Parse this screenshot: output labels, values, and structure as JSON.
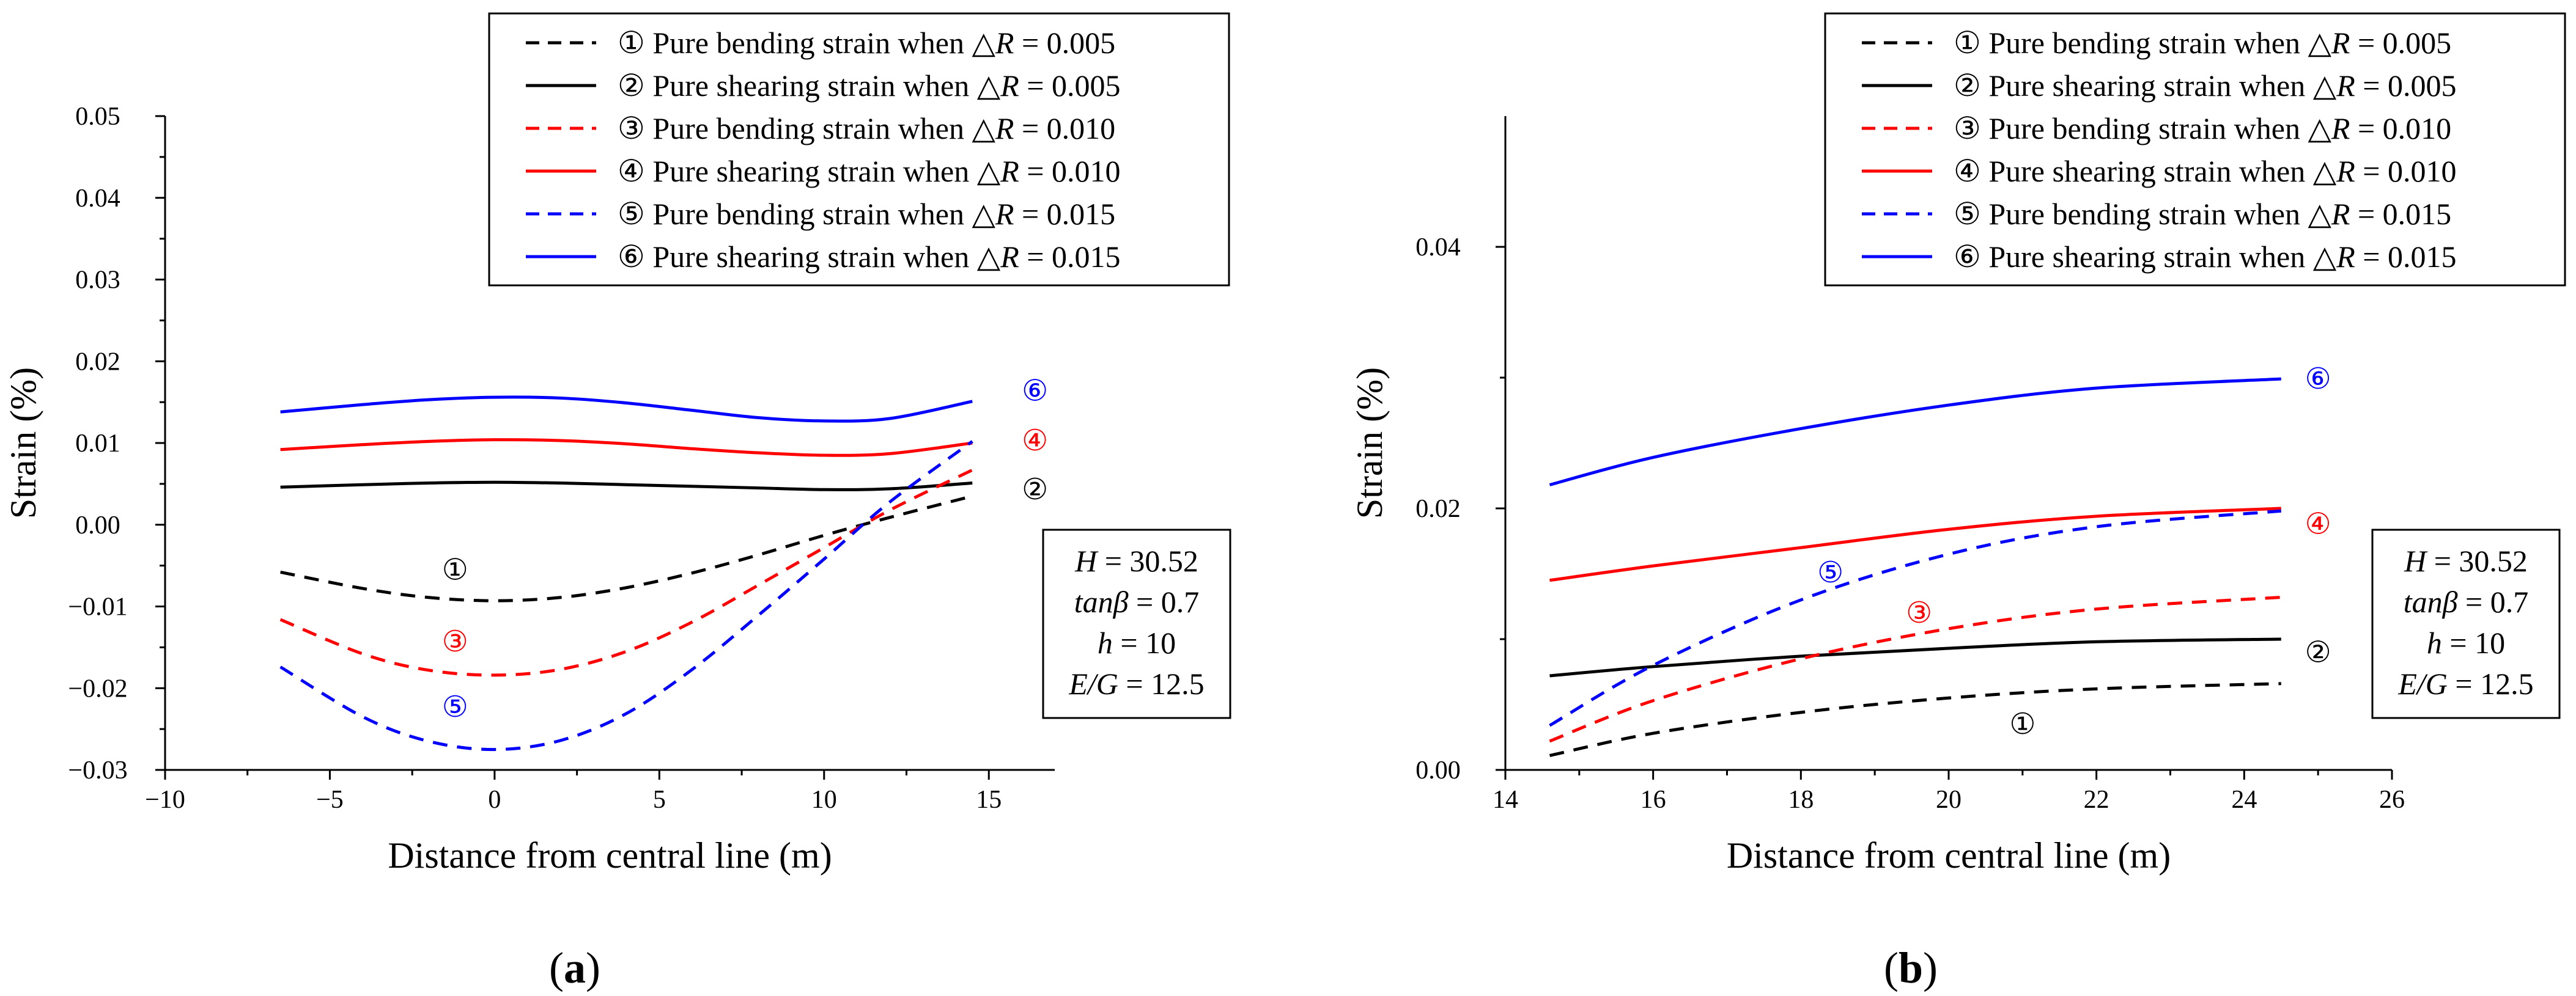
{
  "chart_data": [
    {
      "id": "a",
      "type": "line",
      "sublabel": "(a)",
      "xlabel": "Distance from central line (m)",
      "ylabel": "Strain (%)",
      "xlim": [
        -10,
        17
      ],
      "ylim": [
        -0.03,
        0.05
      ],
      "xticks": [
        -10,
        -5,
        0,
        5,
        10,
        15
      ],
      "xtick_labels": [
        "−10",
        "−5",
        "0",
        "5",
        "10",
        "15"
      ],
      "yticks": [
        -0.03,
        -0.02,
        -0.01,
        0.0,
        0.01,
        0.02,
        0.03,
        0.04,
        0.05
      ],
      "ytick_labels": [
        "−0.03",
        "−0.02",
        "−0.01",
        "0.00",
        "0.01",
        "0.02",
        "0.03",
        "0.04",
        "0.05"
      ],
      "legend_position": "top-right",
      "legend": [
        {
          "marker": "①",
          "label": "Pure bending strain when △",
          "sym": "R",
          "value": " = 0.005",
          "color": "#000000",
          "dash": true
        },
        {
          "marker": "②",
          "label": "Pure shearing strain when △",
          "sym": "R",
          "value": " = 0.005",
          "color": "#000000",
          "dash": false
        },
        {
          "marker": "③",
          "label": "Pure bending strain when △",
          "sym": "R",
          "value": " = 0.010",
          "color": "#ff0000",
          "dash": true
        },
        {
          "marker": "④",
          "label": "Pure shearing strain when △",
          "sym": "R",
          "value": " = 0.010",
          "color": "#ff0000",
          "dash": false
        },
        {
          "marker": "⑤",
          "label": "Pure bending strain when △",
          "sym": "R",
          "value": " = 0.015",
          "color": "#0000ff",
          "dash": true
        },
        {
          "marker": "⑥",
          "label": "Pure shearing strain when △",
          "sym": "R",
          "value": " = 0.015",
          "color": "#0000ff",
          "dash": false
        }
      ],
      "parameters": [
        {
          "sym": "H",
          "value": " = 30.52"
        },
        {
          "sym": "tanβ",
          "value": " = 0.7"
        },
        {
          "sym": "h",
          "value": " = 10"
        },
        {
          "sym": "E/G",
          "value": " = 12.5"
        }
      ],
      "series": [
        {
          "name": "①",
          "color": "#000000",
          "dash": true,
          "x": [
            -6.5,
            -4,
            -2,
            0,
            2,
            4,
            6,
            8,
            10,
            12,
            14.5
          ],
          "y": [
            -0.0058,
            -0.0078,
            -0.0089,
            -0.0093,
            -0.0089,
            -0.0077,
            -0.0059,
            -0.0037,
            -0.0013,
            0.0009,
            0.0035
          ],
          "label_at": [
            -1.2,
            -0.0055
          ]
        },
        {
          "name": "②",
          "color": "#000000",
          "dash": false,
          "x": [
            -6.5,
            -4,
            -2,
            0,
            2,
            4,
            6,
            8,
            10,
            12,
            14.5
          ],
          "y": [
            0.0046,
            0.0049,
            0.0051,
            0.0052,
            0.0051,
            0.0049,
            0.0047,
            0.0045,
            0.0043,
            0.0044,
            0.0051
          ],
          "label_at": [
            16.4,
            0.0043
          ]
        },
        {
          "name": "③",
          "color": "#ff0000",
          "dash": true,
          "x": [
            -6.5,
            -4,
            -2,
            0,
            2,
            4,
            6,
            8,
            10,
            12,
            14.5
          ],
          "y": [
            -0.0116,
            -0.0158,
            -0.0178,
            -0.0184,
            -0.0177,
            -0.0155,
            -0.0119,
            -0.0074,
            -0.0028,
            0.0018,
            0.0067
          ],
          "label_at": [
            -1.2,
            -0.0143
          ]
        },
        {
          "name": "④",
          "color": "#ff0000",
          "dash": false,
          "x": [
            -6.5,
            -4,
            -2,
            0,
            2,
            4,
            6,
            8,
            10,
            12,
            14.5
          ],
          "y": [
            0.0092,
            0.0098,
            0.0102,
            0.0104,
            0.0103,
            0.0099,
            0.0093,
            0.0088,
            0.0085,
            0.0087,
            0.01
          ],
          "label_at": [
            16.4,
            0.0103
          ]
        },
        {
          "name": "⑤",
          "color": "#0000ff",
          "dash": true,
          "x": [
            -6.5,
            -4,
            -2,
            0,
            2,
            4,
            6,
            8,
            10,
            12,
            14.5
          ],
          "y": [
            -0.0174,
            -0.0235,
            -0.0265,
            -0.0275,
            -0.0264,
            -0.0231,
            -0.0177,
            -0.0111,
            -0.0042,
            0.0028,
            0.0102
          ],
          "label_at": [
            -1.2,
            -0.0223
          ]
        },
        {
          "name": "⑥",
          "color": "#0000ff",
          "dash": false,
          "x": [
            -6.5,
            -4,
            -2,
            0,
            2,
            4,
            6,
            8,
            10,
            12,
            14.5
          ],
          "y": [
            0.0138,
            0.0147,
            0.0153,
            0.0156,
            0.0155,
            0.0149,
            0.014,
            0.0131,
            0.0127,
            0.013,
            0.0151
          ],
          "label_at": [
            16.4,
            0.0164
          ]
        }
      ]
    },
    {
      "id": "b",
      "type": "line",
      "sublabel": "(b)",
      "xlabel": "Distance from central line (m)",
      "ylabel": "Strain (%)",
      "xlim": [
        14,
        26
      ],
      "ylim": [
        0.0,
        0.05
      ],
      "xticks": [
        14,
        16,
        18,
        20,
        22,
        24,
        26
      ],
      "xtick_labels": [
        "14",
        "16",
        "18",
        "20",
        "22",
        "24",
        "26"
      ],
      "yticks": [
        0.0,
        0.02,
        0.04
      ],
      "ytick_labels": [
        "0.00",
        "0.02",
        "0.04"
      ],
      "legend_position": "top-right",
      "legend": [
        {
          "marker": "①",
          "label": "Pure bending strain when △",
          "sym": "R",
          "value": " = 0.005",
          "color": "#000000",
          "dash": true
        },
        {
          "marker": "②",
          "label": "Pure shearing strain when △",
          "sym": "R",
          "value": " = 0.005",
          "color": "#000000",
          "dash": false
        },
        {
          "marker": "③",
          "label": "Pure bending strain when △",
          "sym": "R",
          "value": " = 0.010",
          "color": "#ff0000",
          "dash": true
        },
        {
          "marker": "④",
          "label": "Pure shearing strain when △",
          "sym": "R",
          "value": " = 0.010",
          "color": "#ff0000",
          "dash": false
        },
        {
          "marker": "⑤",
          "label": "Pure bending strain when △",
          "sym": "R",
          "value": " = 0.015",
          "color": "#0000ff",
          "dash": true
        },
        {
          "marker": "⑥",
          "label": "Pure shearing strain when △",
          "sym": "R",
          "value": " = 0.015",
          "color": "#0000ff",
          "dash": false
        }
      ],
      "parameters": [
        {
          "sym": "H",
          "value": " = 30.52"
        },
        {
          "sym": "tanβ",
          "value": " = 0.7"
        },
        {
          "sym": "h",
          "value": " = 10"
        },
        {
          "sym": "E/G",
          "value": " = 12.5"
        }
      ],
      "series": [
        {
          "name": "①",
          "color": "#000000",
          "dash": true,
          "x": [
            14.6,
            16,
            18,
            20,
            22,
            24.5
          ],
          "y": [
            0.0011,
            0.0028,
            0.0044,
            0.0055,
            0.0062,
            0.0066
          ],
          "label_at": [
            21.0,
            0.0035
          ]
        },
        {
          "name": "②",
          "color": "#000000",
          "dash": false,
          "x": [
            14.6,
            16,
            18,
            20,
            22,
            24.5
          ],
          "y": [
            0.0072,
            0.0079,
            0.0087,
            0.0093,
            0.0098,
            0.01
          ],
          "label_at": [
            25.0,
            0.009
          ]
        },
        {
          "name": "③",
          "color": "#ff0000",
          "dash": true,
          "x": [
            14.6,
            16,
            18,
            20,
            22,
            24.5
          ],
          "y": [
            0.0022,
            0.0053,
            0.0085,
            0.0108,
            0.0123,
            0.0132
          ],
          "label_at": [
            19.6,
            0.012
          ]
        },
        {
          "name": "④",
          "color": "#ff0000",
          "dash": false,
          "x": [
            14.6,
            16,
            18,
            20,
            22,
            24.5
          ],
          "y": [
            0.0145,
            0.0156,
            0.017,
            0.0184,
            0.0194,
            0.02
          ],
          "label_at": [
            25.0,
            0.0188
          ]
        },
        {
          "name": "⑤",
          "color": "#0000ff",
          "dash": true,
          "x": [
            14.6,
            16,
            18,
            20,
            22,
            24.5
          ],
          "y": [
            0.0034,
            0.008,
            0.013,
            0.0165,
            0.0186,
            0.0198
          ],
          "label_at": [
            18.4,
            0.0151
          ]
        },
        {
          "name": "⑥",
          "color": "#0000ff",
          "dash": false,
          "x": [
            14.6,
            16,
            18,
            20,
            22,
            24.5
          ],
          "y": [
            0.0218,
            0.0239,
            0.0261,
            0.0279,
            0.0292,
            0.0299
          ],
          "label_at": [
            25.0,
            0.0299
          ]
        }
      ]
    }
  ]
}
